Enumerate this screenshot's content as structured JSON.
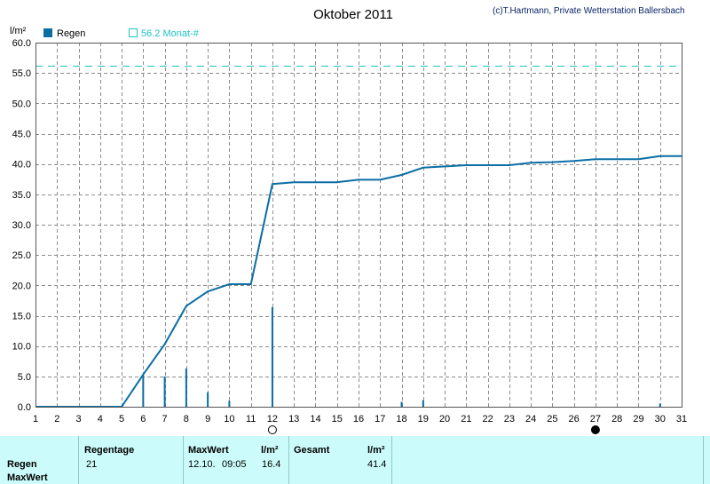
{
  "title": "Oktober 2011",
  "copyright": "(c)T.Hartmann, Private Wetterstation Ballersbach",
  "y_unit": "l/m²",
  "legend": [
    {
      "label": "Regen",
      "color": "#0a6ea5"
    },
    {
      "label": "56.2 Monat-#",
      "color": "#1cc4c4"
    }
  ],
  "colors": {
    "bars": "#0a6ea5",
    "line": "#0a6ea5",
    "reference": "#1cc4c4",
    "grid": "#8c8c8c"
  },
  "chart_data": {
    "type": "bar",
    "x_ticks": [
      "1",
      "2",
      "3",
      "4",
      "5",
      "6",
      "7",
      "8",
      "9",
      "10",
      "11",
      "12",
      "13",
      "14",
      "15",
      "16",
      "17",
      "18",
      "19",
      "20",
      "21",
      "22",
      "23",
      "24",
      "25",
      "26",
      "27",
      "28",
      "29",
      "30",
      "31"
    ],
    "y_ticks": [
      "0.0",
      "5.0",
      "10.0",
      "15.0",
      "20.0",
      "25.0",
      "30.0",
      "35.0",
      "40.0",
      "45.0",
      "50.0",
      "55.0",
      "60.0"
    ],
    "xlim": [
      1,
      31
    ],
    "ylim": [
      0,
      60
    ],
    "grid": true,
    "reference_line": {
      "name": "56.2 Monat-#",
      "value": 56.2
    },
    "series": [
      {
        "name": "Regen",
        "type": "bar",
        "x": [
          6,
          7,
          8,
          9,
          10,
          12,
          18,
          19,
          30
        ],
        "values": [
          5.3,
          5.0,
          6.3,
          2.4,
          1.0,
          16.4,
          0.8,
          1.1,
          0.5
        ]
      },
      {
        "type": "line",
        "x": [
          1,
          5,
          6,
          7,
          8,
          9,
          10,
          11,
          12,
          13,
          14,
          15,
          16,
          17,
          18,
          19,
          20,
          21,
          22,
          23,
          24,
          25,
          26,
          27,
          28,
          29,
          30,
          31
        ],
        "values": [
          0,
          0,
          5.3,
          10.3,
          16.6,
          19.0,
          20.2,
          20.2,
          36.7,
          37.0,
          37.0,
          37.0,
          37.4,
          37.4,
          38.2,
          39.4,
          39.6,
          39.8,
          39.8,
          39.8,
          40.2,
          40.3,
          40.5,
          40.8,
          40.8,
          40.8,
          41.3,
          41.3
        ]
      }
    ],
    "markers": [
      {
        "x": 12,
        "symbol": "open-circle"
      },
      {
        "x": 27,
        "symbol": "filled-circle"
      }
    ]
  },
  "table": {
    "row_labels": [
      "Regen",
      "MaxWert"
    ],
    "regentage": {
      "header": "Regentage",
      "value": "21"
    },
    "maxwert": {
      "header": "MaxWert",
      "unit_header": "l/m²",
      "date": "12.10.",
      "time": "09:05",
      "value": "16.4"
    },
    "gesamt": {
      "header": "Gesamt",
      "unit_header": "l/m²",
      "value": "41.4"
    }
  }
}
